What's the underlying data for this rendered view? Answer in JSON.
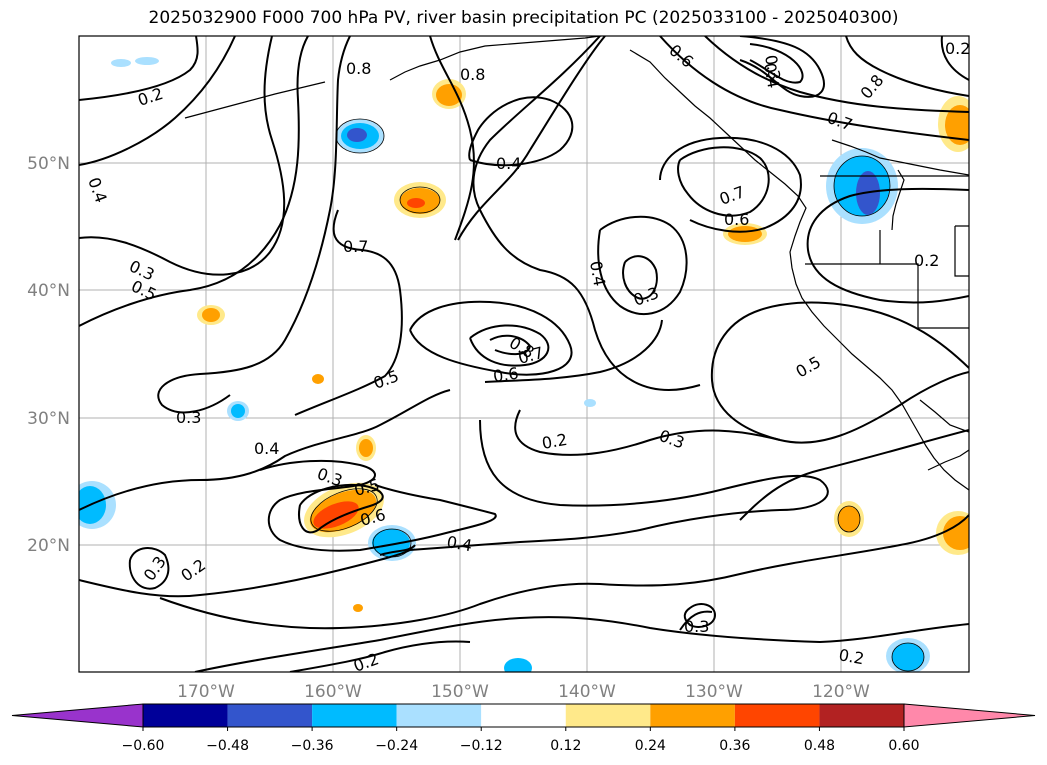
{
  "title": "2025032900 F000 700 hPa PV, river basin precipitation PC (2025033100 - 2025040300)",
  "axes": {
    "lon_ticks": [
      "170°W",
      "160°W",
      "150°W",
      "140°W",
      "130°W",
      "120°W"
    ],
    "lat_ticks": [
      "50°N",
      "40°N",
      "30°N",
      "20°N"
    ]
  },
  "contour_labels": [
    "0.8",
    "0.8",
    "0.6",
    "0.3",
    "0.4",
    "0.2",
    "0.2",
    "0.4",
    "0.8",
    "0.7",
    "0.7",
    "0.6",
    "0.2",
    "0.4",
    "0.3",
    "0.5",
    "0.7",
    "0.4",
    "0.3",
    "0.8",
    "0.7",
    "0.6",
    "0.5",
    "0.5",
    "0.3",
    "0.2",
    "0.3",
    "0.4",
    "0.3",
    "0.5",
    "0.6",
    "0.4",
    "0.3",
    "0.2",
    "0.3",
    "0.2",
    "0.2"
  ],
  "colorbar": {
    "labels": [
      "−0.60",
      "−0.48",
      "−0.36",
      "−0.24",
      "−0.12",
      "0.12",
      "0.24",
      "0.36",
      "0.48",
      "0.60"
    ],
    "colors": [
      "#9933cc",
      "#000099",
      "#3355cc",
      "#00bbff",
      "#aae0ff",
      "#ffffff",
      "#ffe98a",
      "#ffa000",
      "#ff4500",
      "#b22222",
      "#ff88aa"
    ]
  }
}
